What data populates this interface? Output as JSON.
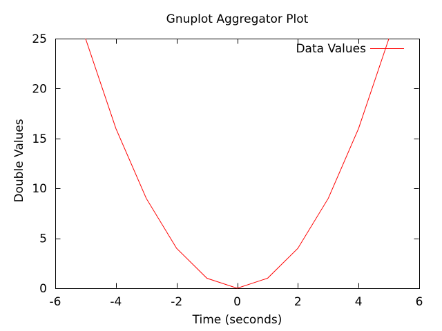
{
  "chart_data": {
    "type": "line",
    "title": "Gnuplot Aggregator Plot",
    "xlabel": "Time (seconds)",
    "ylabel": "Double Values",
    "xlim": [
      -6,
      6
    ],
    "ylim": [
      0,
      25
    ],
    "xticks": [
      -6,
      -4,
      -2,
      0,
      2,
      4,
      6
    ],
    "yticks": [
      0,
      5,
      10,
      15,
      20,
      25
    ],
    "grid": false,
    "legend_position": "top-right-inside",
    "background_color": "#ffffff",
    "border_color": "#000000",
    "text_color": "#000000",
    "series": [
      {
        "name": "Data Values",
        "color": "#ff0000",
        "x": [
          -5,
          -4,
          -3,
          -2,
          -1,
          0,
          1,
          2,
          3,
          4,
          5
        ],
        "y": [
          25,
          16,
          9,
          4,
          1,
          0,
          1,
          4,
          9,
          16,
          25
        ]
      }
    ]
  }
}
